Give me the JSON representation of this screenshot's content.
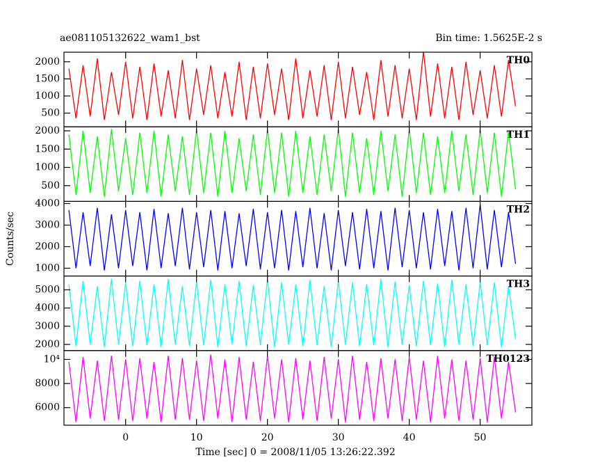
{
  "chart_data": [
    {
      "type": "line",
      "title": "ae081105132622_wam1_bst",
      "subtitle": "Bin time: 1.5625E-2 s",
      "label": "TH0",
      "xlim": [
        -8.7,
        57.3
      ],
      "ylim": [
        100,
        2280
      ],
      "yticks": [
        500,
        1000,
        1500,
        2000
      ],
      "x": [
        -8,
        -7,
        -6,
        -5,
        -4,
        -3,
        -2,
        -1,
        0,
        1,
        2,
        3,
        4,
        5,
        6,
        7,
        8,
        9,
        10,
        11,
        12,
        13,
        14,
        15,
        16,
        17,
        18,
        19,
        20,
        21,
        22,
        23,
        24,
        25,
        26,
        27,
        28,
        29,
        30,
        31,
        32,
        33,
        34,
        35,
        36,
        37,
        38,
        39,
        40,
        41,
        42,
        43,
        44,
        45,
        46,
        47,
        48,
        49,
        50,
        51,
        52,
        53,
        54,
        55
      ],
      "series": [
        {
          "name": "TH0",
          "color": "#ff0000",
          "values": [
            1800,
            350,
            1900,
            400,
            2100,
            300,
            1700,
            450,
            2000,
            350,
            1850,
            300,
            1950,
            400,
            1750,
            350,
            2050,
            300,
            1800,
            450,
            1900,
            350,
            1700,
            400,
            2000,
            300,
            1850,
            350,
            1950,
            450,
            1800,
            300,
            2100,
            350,
            1750,
            400,
            1900,
            300,
            2000,
            350,
            1850,
            450,
            1700,
            300,
            2050,
            400,
            1900,
            350,
            1800,
            300,
            2300,
            400,
            1950,
            350,
            1850,
            300,
            2000,
            450,
            1750,
            350,
            1900,
            400,
            2050,
            700
          ]
        }
      ]
    },
    {
      "type": "line",
      "label": "TH1",
      "xlim": [
        -8.7,
        57.3
      ],
      "ylim": [
        70,
        2110
      ],
      "yticks": [
        500,
        1000,
        1500,
        2000
      ],
      "x": [
        -8,
        -7,
        -6,
        -5,
        -4,
        -3,
        -2,
        -1,
        0,
        1,
        2,
        3,
        4,
        5,
        6,
        7,
        8,
        9,
        10,
        11,
        12,
        13,
        14,
        15,
        16,
        17,
        18,
        19,
        20,
        21,
        22,
        23,
        24,
        25,
        26,
        27,
        28,
        29,
        30,
        31,
        32,
        33,
        34,
        35,
        36,
        37,
        38,
        39,
        40,
        41,
        42,
        43,
        44,
        45,
        46,
        47,
        48,
        49,
        50,
        51,
        52,
        53,
        54,
        55
      ],
      "series": [
        {
          "name": "TH1",
          "color": "#00ff00",
          "values": [
            1900,
            250,
            2000,
            300,
            1850,
            200,
            2050,
            350,
            1800,
            250,
            1950,
            300,
            2000,
            200,
            1900,
            350,
            1850,
            250,
            2050,
            300,
            1950,
            200,
            2000,
            300,
            1800,
            350,
            1900,
            250,
            2050,
            300,
            1950,
            200,
            2000,
            300,
            1850,
            250,
            1900,
            350,
            2050,
            200,
            1950,
            300,
            1800,
            250,
            2000,
            350,
            1900,
            200,
            2050,
            300,
            1950,
            250,
            1850,
            300,
            2000,
            350,
            1900,
            250,
            2050,
            300,
            1950,
            200,
            2000,
            400
          ]
        }
      ]
    },
    {
      "type": "line",
      "label": "TH2",
      "ylabel": "Counts/sec",
      "xlim": [
        -8.7,
        57.3
      ],
      "ylim": [
        640,
        4100
      ],
      "yticks": [
        1000,
        2000,
        3000,
        4000
      ],
      "x": [
        -8,
        -7,
        -6,
        -5,
        -4,
        -3,
        -2,
        -1,
        0,
        1,
        2,
        3,
        4,
        5,
        6,
        7,
        8,
        9,
        10,
        11,
        12,
        13,
        14,
        15,
        16,
        17,
        18,
        19,
        20,
        21,
        22,
        23,
        24,
        25,
        26,
        27,
        28,
        29,
        30,
        31,
        32,
        33,
        34,
        35,
        36,
        37,
        38,
        39,
        40,
        41,
        42,
        43,
        44,
        45,
        46,
        47,
        48,
        49,
        50,
        51,
        52,
        53,
        54,
        55
      ],
      "series": [
        {
          "name": "TH2",
          "color": "#0000ff",
          "values": [
            3700,
            1000,
            3600,
            1100,
            3800,
            900,
            3500,
            1000,
            3700,
            1100,
            3600,
            900,
            3750,
            1000,
            3550,
            1100,
            3800,
            950,
            3600,
            1050,
            3700,
            900,
            3650,
            1000,
            3550,
            1100,
            3750,
            950,
            3600,
            1000,
            3700,
            900,
            3650,
            1050,
            3800,
            1000,
            3550,
            900,
            3700,
            1100,
            3600,
            950,
            3750,
            1000,
            3650,
            900,
            3800,
            1050,
            3700,
            1000,
            3600,
            950,
            3750,
            1100,
            3650,
            900,
            3800,
            1000,
            3950,
            950,
            3700,
            1050,
            3600,
            1200
          ]
        }
      ]
    },
    {
      "type": "line",
      "label": "TH3",
      "xlim": [
        -8.7,
        57.3
      ],
      "ylim": [
        1660,
        5760
      ],
      "yticks": [
        2000,
        3000,
        4000,
        5000
      ],
      "x": [
        -8,
        -7,
        -6,
        -5,
        -4,
        -3,
        -2,
        -1,
        0,
        1,
        2,
        3,
        4,
        5,
        6,
        7,
        8,
        9,
        10,
        11,
        12,
        13,
        14,
        15,
        16,
        17,
        18,
        19,
        20,
        21,
        22,
        23,
        24,
        25,
        26,
        27,
        28,
        29,
        30,
        31,
        32,
        33,
        34,
        35,
        36,
        37,
        38,
        39,
        40,
        41,
        42,
        43,
        44,
        45,
        46,
        47,
        48,
        49,
        50,
        51,
        52,
        53,
        54,
        55
      ],
      "series": [
        {
          "name": "TH3",
          "color": "#00ffff",
          "values": [
            5300,
            1900,
            5500,
            2000,
            5200,
            1850,
            5600,
            2000,
            5400,
            1900,
            5500,
            1950,
            5300,
            1850,
            5600,
            2000,
            5200,
            1900,
            5450,
            1950,
            5550,
            1850,
            5300,
            2000,
            5500,
            1900,
            5250,
            1950,
            5600,
            1850,
            5400,
            2000,
            5300,
            1900,
            5550,
            1950,
            5200,
            1850,
            5500,
            2000,
            5400,
            1900,
            5300,
            1950,
            5600,
            1850,
            5450,
            2000,
            5250,
            1900,
            5500,
            1950,
            5350,
            1850,
            5550,
            2000,
            5300,
            1900,
            5450,
            1950,
            5400,
            1850,
            5200,
            2300
          ]
        }
      ]
    },
    {
      "type": "line",
      "label": "TH0123",
      "xlabel": "Time [sec] 0 = 2008/11/05 13:26:22.392",
      "xlim": [
        -8.7,
        57.3
      ],
      "ylim": [
        4540,
        10730
      ],
      "yticks": [
        6000,
        8000,
        {
          "value": 10000,
          "label": "10⁴"
        }
      ],
      "xticks": [
        0,
        10,
        20,
        30,
        40,
        50
      ],
      "x": [
        -8,
        -7,
        -6,
        -5,
        -4,
        -3,
        -2,
        -1,
        0,
        1,
        2,
        3,
        4,
        5,
        6,
        7,
        8,
        9,
        10,
        11,
        12,
        13,
        14,
        15,
        16,
        17,
        18,
        19,
        20,
        21,
        22,
        23,
        24,
        25,
        26,
        27,
        28,
        29,
        30,
        31,
        32,
        33,
        34,
        35,
        36,
        37,
        38,
        39,
        40,
        41,
        42,
        43,
        44,
        45,
        46,
        47,
        48,
        49,
        50,
        51,
        52,
        53,
        54,
        55
      ],
      "series": [
        {
          "name": "TH0123",
          "color": "#ff00ff",
          "values": [
            9800,
            4800,
            10200,
            5100,
            9900,
            4900,
            10300,
            5000,
            10000,
            4900,
            10100,
            5100,
            9800,
            4800,
            10300,
            5000,
            10100,
            5000,
            9900,
            4900,
            10400,
            5100,
            10000,
            4800,
            10200,
            5000,
            9800,
            4900,
            10300,
            5100,
            10000,
            4800,
            10100,
            5000,
            9900,
            4900,
            10200,
            5100,
            10000,
            4800,
            10300,
            5000,
            9800,
            4900,
            10100,
            5100,
            10000,
            4900,
            10200,
            5000,
            9900,
            4800,
            10300,
            5100,
            10000,
            4900,
            9900,
            5000,
            10100,
            4800,
            10200,
            5100,
            9800,
            5600
          ]
        }
      ]
    }
  ]
}
